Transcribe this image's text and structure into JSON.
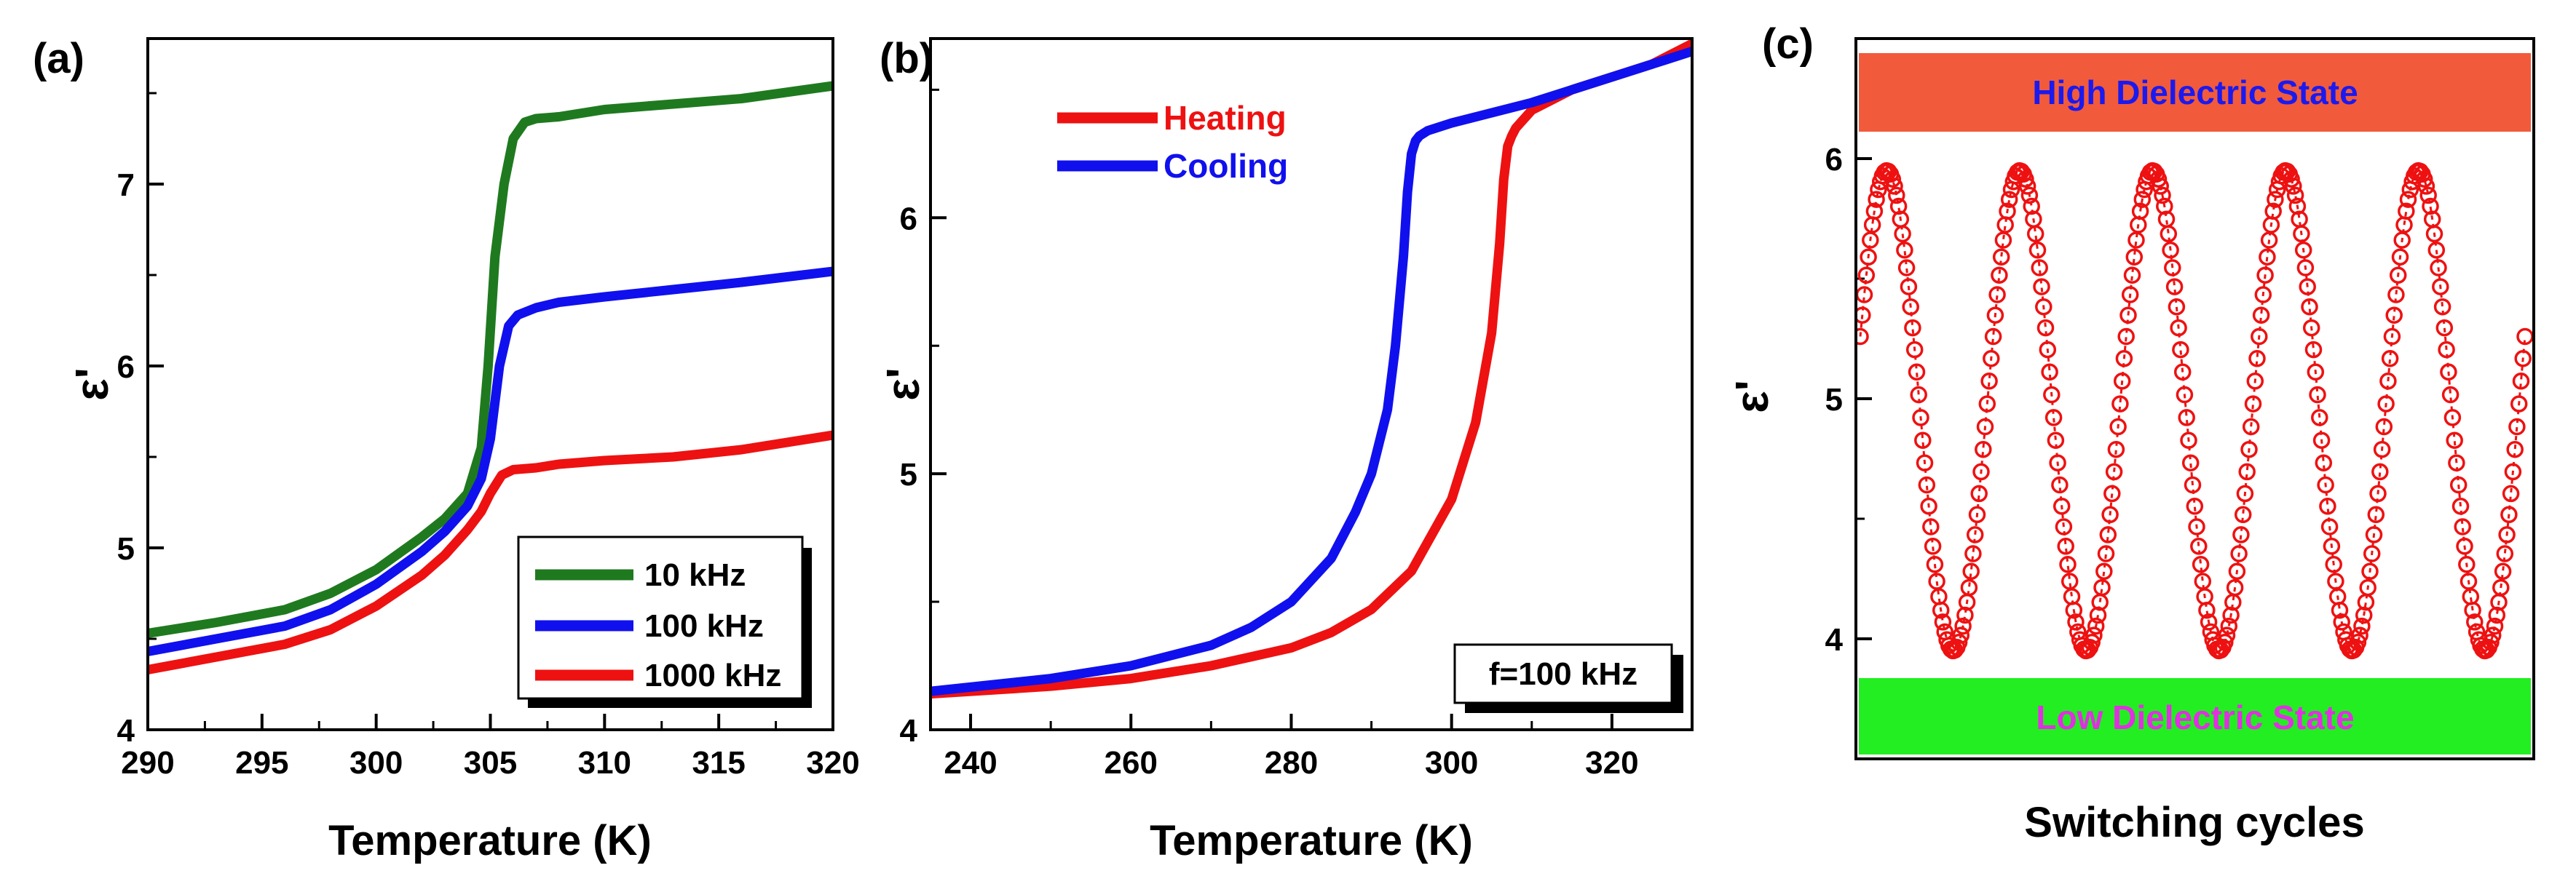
{
  "chart_data": [
    {
      "panel": "(a)",
      "type": "line",
      "xlabel": "Temperature (K)",
      "ylabel": "ε'",
      "xlim": [
        290,
        320
      ],
      "ylim": [
        4,
        7.8
      ],
      "xticks": [
        290,
        295,
        300,
        305,
        310,
        315,
        320
      ],
      "yticks": [
        4,
        5,
        6,
        7
      ],
      "legend_position": "bottom-right",
      "series": [
        {
          "name": "10 kHz",
          "color": "#1f7a1f",
          "x": [
            290,
            293,
            296,
            298,
            300,
            302,
            303,
            304,
            304.6,
            304.9,
            305.2,
            305.6,
            306.0,
            306.5,
            307,
            308,
            310,
            313,
            316,
            320
          ],
          "y": [
            4.53,
            4.59,
            4.66,
            4.75,
            4.88,
            5.06,
            5.16,
            5.3,
            5.55,
            6.0,
            6.6,
            7.0,
            7.25,
            7.34,
            7.36,
            7.37,
            7.41,
            7.44,
            7.47,
            7.54
          ]
        },
        {
          "name": "100 kHz",
          "color": "#1010ee",
          "x": [
            290,
            293,
            296,
            298,
            300,
            302,
            303,
            304,
            304.6,
            305.0,
            305.4,
            305.8,
            306.2,
            307,
            308,
            310,
            313,
            316,
            320
          ],
          "y": [
            4.43,
            4.5,
            4.57,
            4.66,
            4.8,
            4.98,
            5.09,
            5.23,
            5.38,
            5.6,
            6.0,
            6.22,
            6.28,
            6.32,
            6.35,
            6.38,
            6.42,
            6.46,
            6.52
          ]
        },
        {
          "name": "1000 kHz",
          "color": "#ee1111",
          "x": [
            290,
            293,
            296,
            298,
            300,
            302,
            303,
            304,
            304.6,
            305.0,
            305.5,
            306,
            307,
            308,
            310,
            313,
            316,
            320
          ],
          "y": [
            4.33,
            4.4,
            4.47,
            4.55,
            4.68,
            4.85,
            4.96,
            5.1,
            5.2,
            5.3,
            5.4,
            5.43,
            5.44,
            5.46,
            5.48,
            5.5,
            5.54,
            5.62
          ]
        }
      ]
    },
    {
      "panel": "(b)",
      "type": "line",
      "xlabel": "Temperature (K)",
      "ylabel": "ε'",
      "xlim": [
        235,
        330
      ],
      "ylim": [
        4,
        6.7
      ],
      "xticks": [
        240,
        260,
        280,
        300,
        320
      ],
      "yticks": [
        4,
        5,
        6
      ],
      "annotation": "f=100 kHz",
      "legend_position": "top-left",
      "series": [
        {
          "name": "Heating",
          "color": "#ee1111",
          "x": [
            235,
            250,
            260,
            270,
            280,
            285,
            290,
            295,
            300,
            303,
            305,
            306,
            306.5,
            307,
            307.5,
            308,
            310,
            315,
            320,
            325,
            330
          ],
          "y": [
            4.14,
            4.17,
            4.2,
            4.25,
            4.32,
            4.38,
            4.47,
            4.62,
            4.9,
            5.2,
            5.55,
            5.9,
            6.15,
            6.28,
            6.32,
            6.35,
            6.42,
            6.5,
            6.55,
            6.6,
            6.68
          ]
        },
        {
          "name": "Cooling",
          "color": "#1010ee",
          "x": [
            235,
            250,
            260,
            270,
            275,
            280,
            285,
            288,
            290,
            292,
            293,
            294,
            294.5,
            295,
            295.5,
            296,
            297,
            300,
            310,
            320,
            330
          ],
          "y": [
            4.15,
            4.2,
            4.25,
            4.33,
            4.4,
            4.5,
            4.67,
            4.85,
            5.0,
            5.25,
            5.5,
            5.85,
            6.1,
            6.25,
            6.3,
            6.32,
            6.34,
            6.37,
            6.45,
            6.55,
            6.65
          ]
        }
      ]
    },
    {
      "panel": "(c)",
      "type": "scatter",
      "xlabel": "Switching cycles",
      "ylabel": "ε'",
      "ylim": [
        3.5,
        6.5
      ],
      "yticks": [
        4,
        5,
        6
      ],
      "cycles": 5,
      "high_value": 5.95,
      "low_value": 3.95,
      "marker_color": "#ee1111",
      "bands": [
        {
          "label": "High Dielectric State",
          "fill": "#f25a3c",
          "text_color": "#1a1aee",
          "y_range": [
            6.14,
            6.48
          ]
        },
        {
          "label": "Low Dielectric State",
          "fill": "#22ee22",
          "text_color": "#e22ee2",
          "y_range": [
            3.52,
            3.83
          ]
        }
      ]
    }
  ]
}
